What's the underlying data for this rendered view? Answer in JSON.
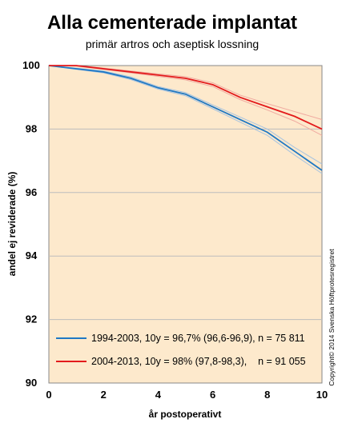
{
  "chart_data": {
    "type": "line",
    "title": "Alla cementerade implantat",
    "subtitle": "primär artros och aseptisk lossning",
    "xlabel": "år postoperativt",
    "ylabel": "andel ej reviderade (%)",
    "xlim": [
      0,
      10
    ],
    "ylim": [
      90,
      100
    ],
    "xticks": [
      "0",
      "2",
      "4",
      "6",
      "8",
      "10"
    ],
    "yticks": [
      "90",
      "92",
      "94",
      "96",
      "98",
      "100"
    ],
    "grid": true,
    "legend_position": "bottom-left",
    "copyright": "Copyright© 2014 Svenska Höftprotesregistret",
    "colors": {
      "plot_background": "#fde9cc",
      "grid": "#bdbdbd",
      "series_1": "#1f78c4",
      "series_1_ci": "#a6c3e0",
      "series_2": "#e31a1c",
      "series_2_ci": "#f0aaa0"
    },
    "series": [
      {
        "name": "1994-2003, 10y = 96,7% (96,6-96,9), n = 75 811",
        "x": [
          0,
          1,
          2,
          3,
          4,
          5,
          6,
          7,
          8,
          9,
          10
        ],
        "values": [
          100,
          99.9,
          99.8,
          99.6,
          99.3,
          99.1,
          98.7,
          98.3,
          97.9,
          97.3,
          96.7
        ],
        "ci_low": [
          100,
          99.88,
          99.77,
          99.56,
          99.26,
          99.05,
          98.64,
          98.22,
          97.8,
          97.18,
          96.6
        ],
        "ci_high": [
          100,
          99.92,
          99.83,
          99.64,
          99.34,
          99.15,
          98.76,
          98.38,
          98.0,
          97.42,
          96.9
        ]
      },
      {
        "name": "2004-2013, 10y = 98% (97,8-98,3),    n = 91 055",
        "x": [
          0,
          1,
          2,
          3,
          4,
          5,
          6,
          7,
          8,
          9,
          10
        ],
        "values": [
          100,
          100,
          99.9,
          99.8,
          99.7,
          99.6,
          99.4,
          99.0,
          98.7,
          98.4,
          98.0
        ],
        "ci_low": [
          100,
          99.98,
          99.88,
          99.77,
          99.66,
          99.55,
          99.34,
          98.93,
          98.6,
          98.25,
          97.8
        ],
        "ci_high": [
          100,
          100,
          99.92,
          99.83,
          99.74,
          99.65,
          99.46,
          99.07,
          98.8,
          98.55,
          98.3
        ]
      }
    ]
  }
}
